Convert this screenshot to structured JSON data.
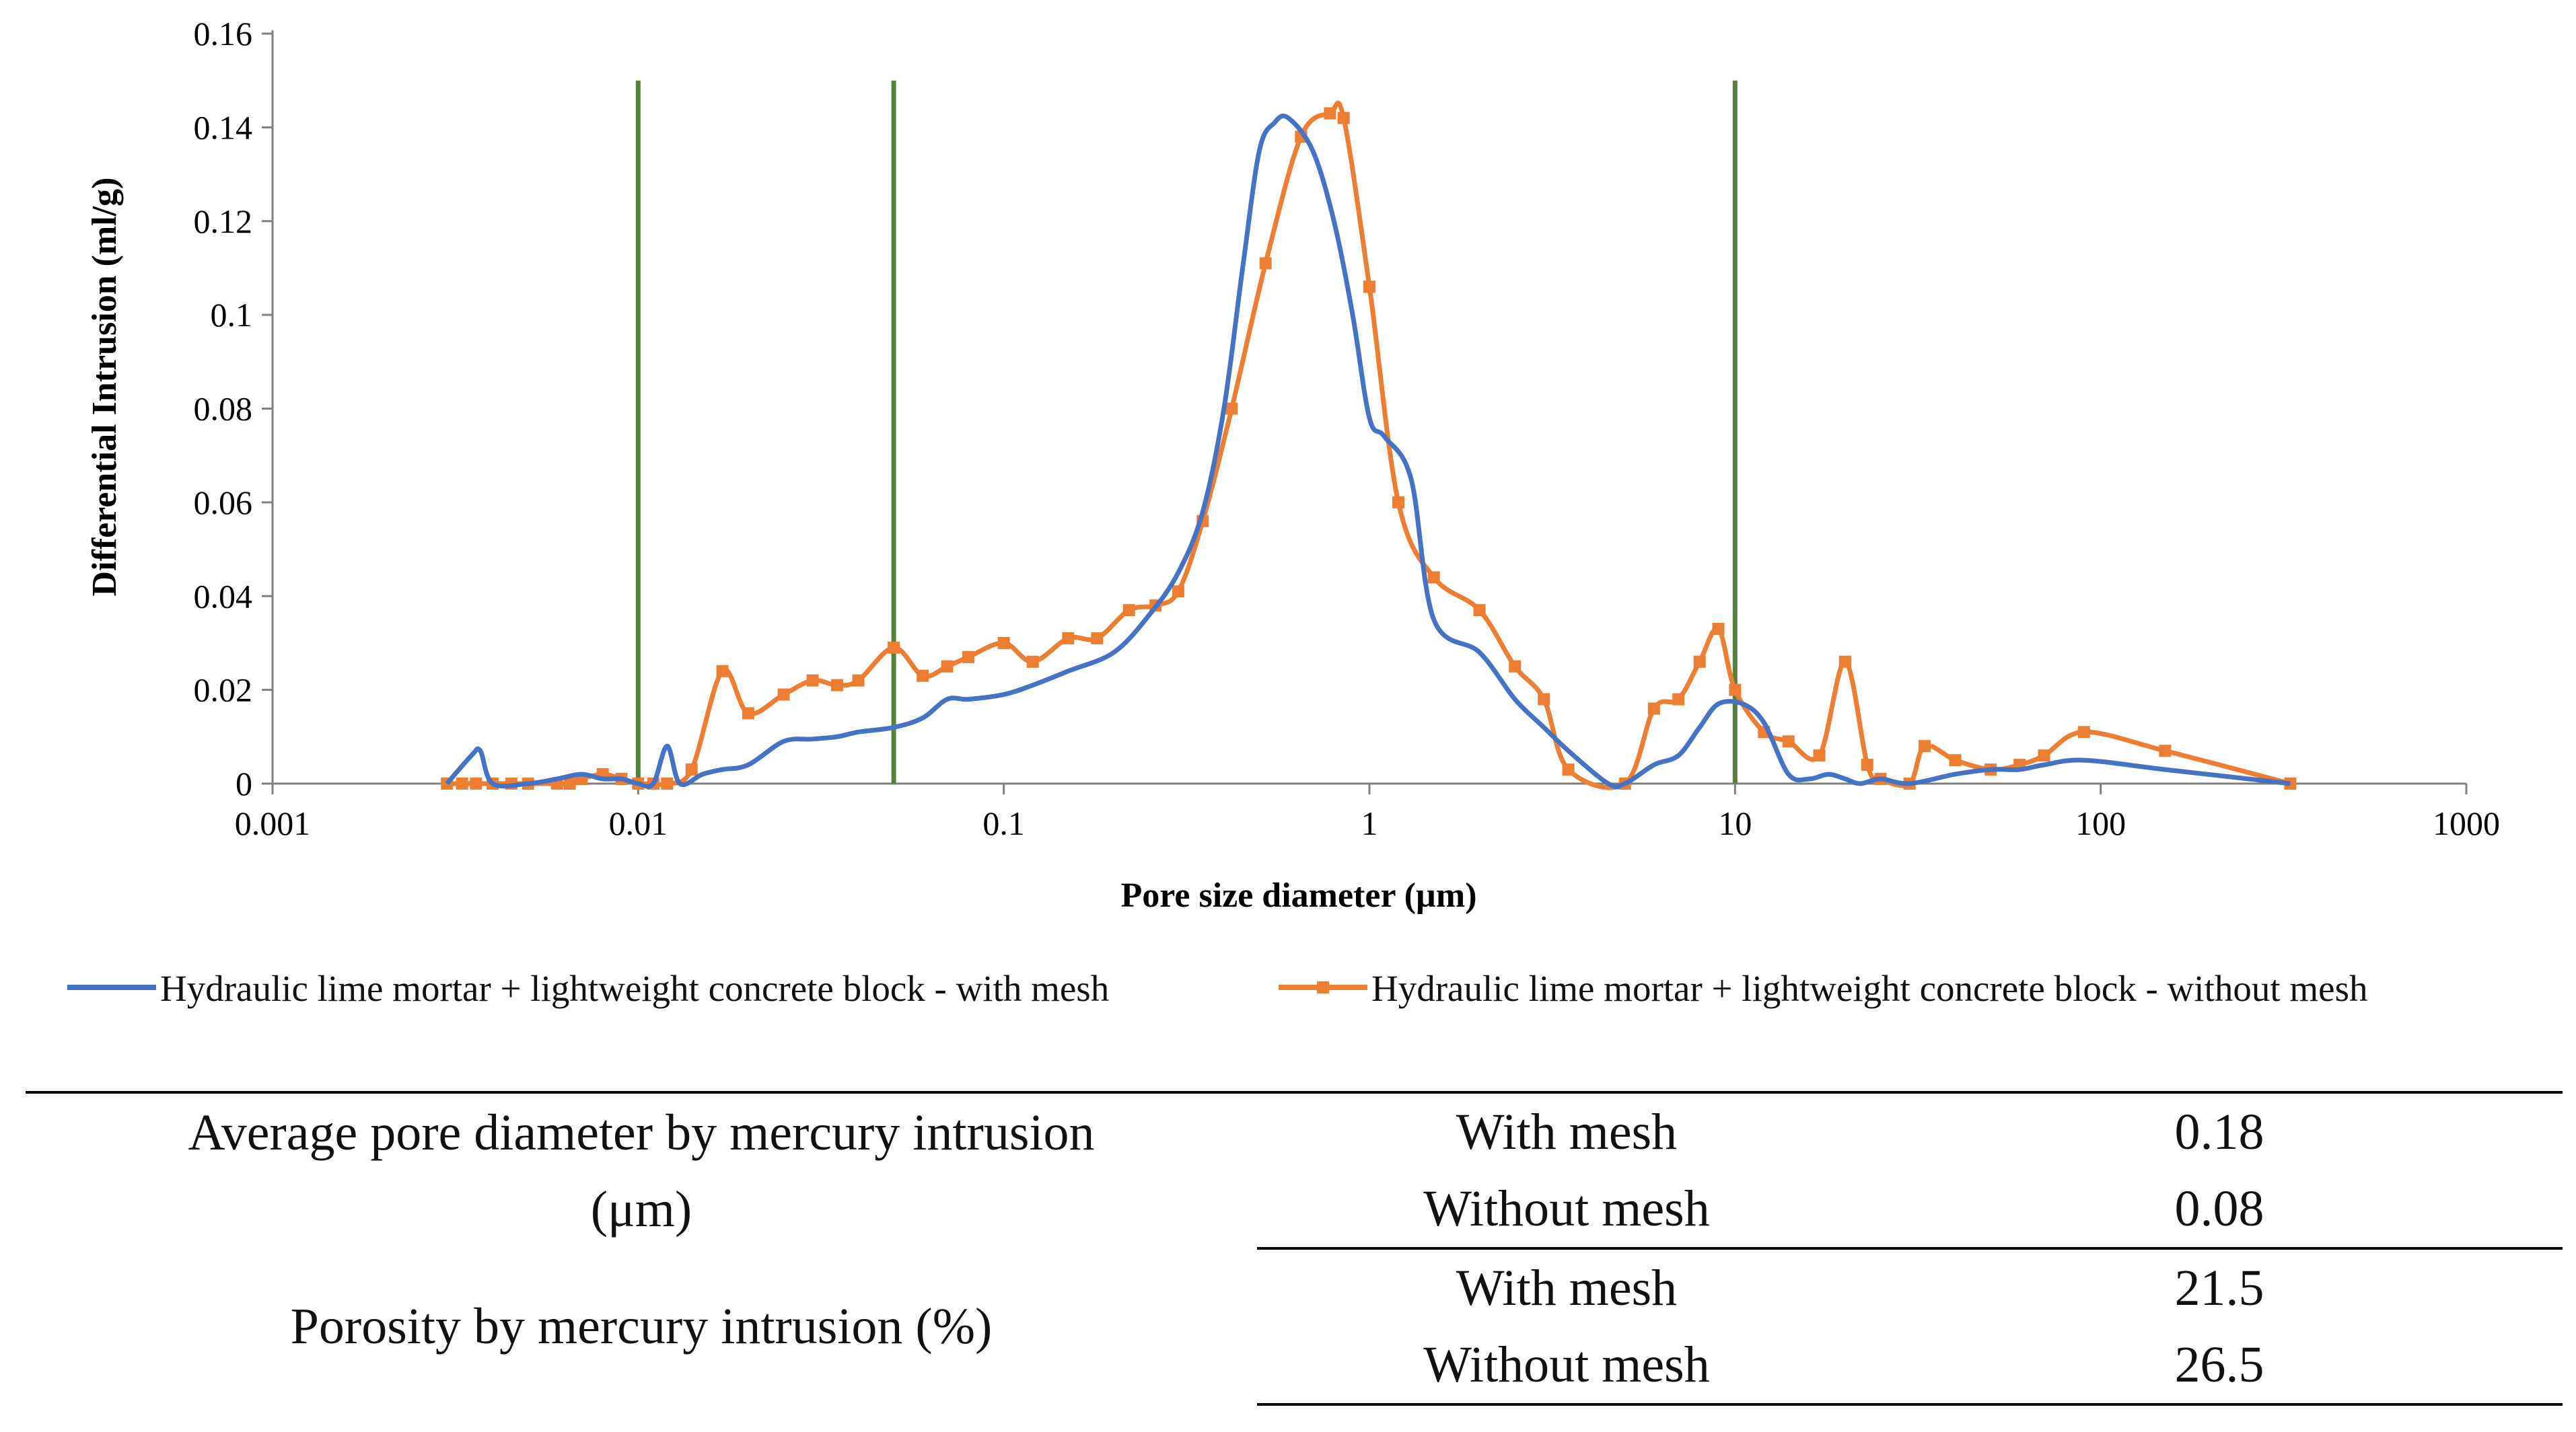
{
  "chart_data": {
    "type": "line",
    "xscale": "log",
    "xlabel": "Pore size diameter (µm)",
    "ylabel": "Differential Intrusion  (ml/g)",
    "xlim": [
      0.001,
      1000
    ],
    "ylim": [
      0,
      0.16
    ],
    "x_ticks": [
      0.001,
      0.01,
      0.1,
      1,
      10,
      100,
      1000
    ],
    "x_tick_labels": [
      "0.001",
      "0.01",
      "0.1",
      "1",
      "10",
      "100",
      "1000"
    ],
    "y_ticks": [
      0,
      0.02,
      0.04,
      0.06,
      0.08,
      0.1,
      0.12,
      0.14,
      0.16
    ],
    "y_tick_labels": [
      "0",
      "0.02",
      "0.04",
      "0.06",
      "0.08",
      "0.1",
      "0.12",
      "0.14",
      "0.16"
    ],
    "vertical_lines": [
      0.01,
      0.05,
      10
    ],
    "vertical_line_top": 0.15,
    "legend_position": "bottom",
    "series": [
      {
        "name": "Hydraulic lime mortar + lightweight concrete block - with mesh",
        "color": "#4472C4",
        "markers": false,
        "points": [
          [
            0.003,
            0
          ],
          [
            0.0035,
            0.006
          ],
          [
            0.0037,
            0.007
          ],
          [
            0.004,
            0
          ],
          [
            0.005,
            0
          ],
          [
            0.006,
            0.001
          ],
          [
            0.007,
            0.002
          ],
          [
            0.008,
            0.001
          ],
          [
            0.009,
            0.001
          ],
          [
            0.01,
            0
          ],
          [
            0.011,
            0
          ],
          [
            0.012,
            0.008
          ],
          [
            0.013,
            0
          ],
          [
            0.015,
            0.002
          ],
          [
            0.017,
            0.003
          ],
          [
            0.02,
            0.004
          ],
          [
            0.025,
            0.009
          ],
          [
            0.03,
            0.0095
          ],
          [
            0.035,
            0.01
          ],
          [
            0.04,
            0.011
          ],
          [
            0.05,
            0.012
          ],
          [
            0.06,
            0.014
          ],
          [
            0.07,
            0.018
          ],
          [
            0.08,
            0.018
          ],
          [
            0.1,
            0.019
          ],
          [
            0.12,
            0.021
          ],
          [
            0.15,
            0.024
          ],
          [
            0.2,
            0.028
          ],
          [
            0.25,
            0.036
          ],
          [
            0.3,
            0.045
          ],
          [
            0.35,
            0.058
          ],
          [
            0.4,
            0.08
          ],
          [
            0.45,
            0.11
          ],
          [
            0.5,
            0.135
          ],
          [
            0.55,
            0.141
          ],
          [
            0.6,
            0.142
          ],
          [
            0.7,
            0.135
          ],
          [
            0.8,
            0.12
          ],
          [
            0.9,
            0.1
          ],
          [
            1.0,
            0.078
          ],
          [
            1.1,
            0.074
          ],
          [
            1.3,
            0.065
          ],
          [
            1.5,
            0.035
          ],
          [
            2.0,
            0.028
          ],
          [
            2.5,
            0.018
          ],
          [
            3.0,
            0.012
          ],
          [
            3.5,
            0.007
          ],
          [
            4.5,
            0
          ],
          [
            5.0,
            0
          ],
          [
            6.0,
            0.004
          ],
          [
            7.0,
            0.006
          ],
          [
            8.0,
            0.012
          ],
          [
            9.0,
            0.017
          ],
          [
            10.5,
            0.017
          ],
          [
            12.0,
            0.013
          ],
          [
            14.0,
            0.002
          ],
          [
            16.0,
            0.001
          ],
          [
            18.0,
            0.002
          ],
          [
            20.0,
            0.001
          ],
          [
            22.0,
            0
          ],
          [
            25.0,
            0.001
          ],
          [
            30.0,
            0
          ],
          [
            40.0,
            0.002
          ],
          [
            50.0,
            0.003
          ],
          [
            60.0,
            0.003
          ],
          [
            70.0,
            0.004
          ],
          [
            90.0,
            0.005
          ],
          [
            150.0,
            0.003
          ],
          [
            330.0,
            0
          ]
        ]
      },
      {
        "name": "Hydraulic lime mortar + lightweight concrete block - without mesh",
        "color": "#ED7D31",
        "markers": true,
        "points": [
          [
            0.003,
            0
          ],
          [
            0.0033,
            0
          ],
          [
            0.0036,
            0
          ],
          [
            0.004,
            0
          ],
          [
            0.0045,
            0
          ],
          [
            0.005,
            0
          ],
          [
            0.006,
            0
          ],
          [
            0.0065,
            0
          ],
          [
            0.007,
            0.001
          ],
          [
            0.008,
            0.002
          ],
          [
            0.009,
            0.001
          ],
          [
            0.01,
            0
          ],
          [
            0.011,
            0
          ],
          [
            0.012,
            0
          ],
          [
            0.014,
            0.003
          ],
          [
            0.017,
            0.024
          ],
          [
            0.02,
            0.015
          ],
          [
            0.025,
            0.019
          ],
          [
            0.03,
            0.022
          ],
          [
            0.035,
            0.021
          ],
          [
            0.04,
            0.022
          ],
          [
            0.05,
            0.029
          ],
          [
            0.06,
            0.023
          ],
          [
            0.07,
            0.025
          ],
          [
            0.08,
            0.027
          ],
          [
            0.1,
            0.03
          ],
          [
            0.12,
            0.026
          ],
          [
            0.15,
            0.031
          ],
          [
            0.18,
            0.031
          ],
          [
            0.22,
            0.037
          ],
          [
            0.26,
            0.038
          ],
          [
            0.3,
            0.041
          ],
          [
            0.35,
            0.056
          ],
          [
            0.42,
            0.08
          ],
          [
            0.52,
            0.111
          ],
          [
            0.65,
            0.138
          ],
          [
            0.78,
            0.143
          ],
          [
            0.85,
            0.142
          ],
          [
            1.0,
            0.106
          ],
          [
            1.2,
            0.06
          ],
          [
            1.5,
            0.044
          ],
          [
            2.0,
            0.037
          ],
          [
            2.5,
            0.025
          ],
          [
            3.0,
            0.018
          ],
          [
            3.5,
            0.003
          ],
          [
            5.0,
            0
          ],
          [
            6.0,
            0.016
          ],
          [
            7.0,
            0.018
          ],
          [
            8.0,
            0.026
          ],
          [
            9.0,
            0.033
          ],
          [
            10.0,
            0.02
          ],
          [
            12.0,
            0.011
          ],
          [
            14.0,
            0.009
          ],
          [
            17.0,
            0.006
          ],
          [
            20.0,
            0.026
          ],
          [
            23.0,
            0.004
          ],
          [
            25.0,
            0.001
          ],
          [
            30.0,
            0
          ],
          [
            33.0,
            0.008
          ],
          [
            40.0,
            0.005
          ],
          [
            50.0,
            0.003
          ],
          [
            60.0,
            0.004
          ],
          [
            70.0,
            0.006
          ],
          [
            90.0,
            0.011
          ],
          [
            150.0,
            0.007
          ],
          [
            330.0,
            0
          ]
        ]
      }
    ]
  },
  "table": {
    "rows": [
      {
        "label_line1": "Average pore diameter by mercury intrusion",
        "label_line2": "(μm)",
        "entries": [
          {
            "condition": "With mesh",
            "value": "0.18"
          },
          {
            "condition": "Without mesh",
            "value": "0.08"
          }
        ]
      },
      {
        "label": "Porosity by mercury intrusion (%)",
        "entries": [
          {
            "condition": "With mesh",
            "value": "21.5"
          },
          {
            "condition": "Without mesh",
            "value": "26.5"
          }
        ]
      }
    ]
  },
  "colors": {
    "vertical_line": "#548235",
    "axis": "#7F7F7F"
  }
}
